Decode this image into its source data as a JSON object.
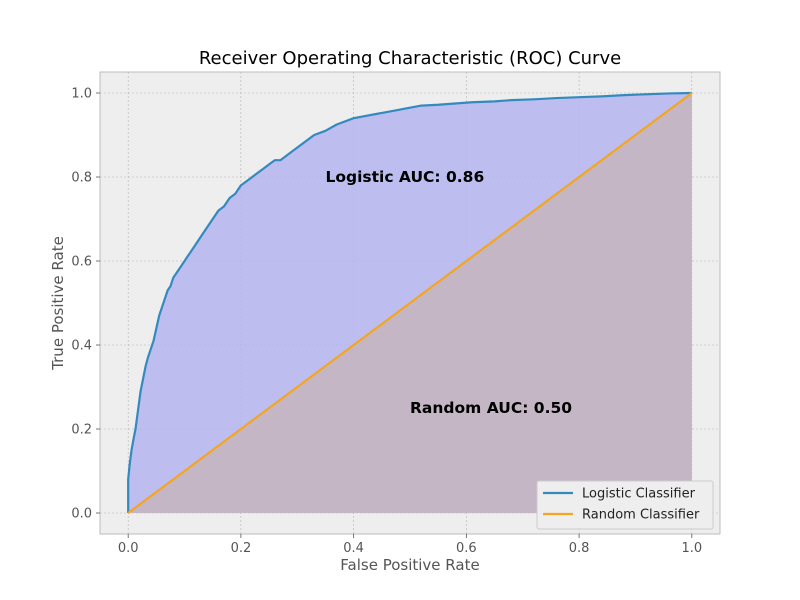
{
  "chart_data": {
    "type": "line",
    "title": "Receiver Operating Characteristic (ROC) Curve",
    "xlabel": "False Positive Rate",
    "ylabel": "True Positive Rate",
    "xlim": [
      -0.05,
      1.05
    ],
    "ylim": [
      -0.05,
      1.05
    ],
    "xticks": [
      "0.0",
      "0.2",
      "0.4",
      "0.6",
      "0.8",
      "1.0"
    ],
    "yticks": [
      "0.0",
      "0.2",
      "0.4",
      "0.6",
      "0.8",
      "1.0"
    ],
    "grid": true,
    "legend_position": "bottom-right",
    "series": [
      {
        "name": "Logistic Classifier",
        "color": "#348abd",
        "fill_color": "#b4b4f0",
        "x": [
          0.0,
          0.0,
          0.003,
          0.006,
          0.01,
          0.013,
          0.016,
          0.019,
          0.022,
          0.025,
          0.028,
          0.031,
          0.035,
          0.04,
          0.045,
          0.05,
          0.055,
          0.06,
          0.065,
          0.07,
          0.075,
          0.08,
          0.085,
          0.09,
          0.095,
          0.1,
          0.105,
          0.11,
          0.12,
          0.13,
          0.14,
          0.15,
          0.16,
          0.17,
          0.18,
          0.19,
          0.2,
          0.21,
          0.22,
          0.23,
          0.24,
          0.25,
          0.26,
          0.27,
          0.28,
          0.29,
          0.31,
          0.33,
          0.35,
          0.37,
          0.38,
          0.4,
          0.42,
          0.44,
          0.46,
          0.48,
          0.5,
          0.52,
          0.55,
          0.58,
          0.61,
          0.65,
          0.68,
          0.72,
          0.76,
          0.8,
          0.84,
          0.88,
          0.92,
          0.96,
          1.0
        ],
        "y": [
          0.0,
          0.08,
          0.12,
          0.15,
          0.18,
          0.2,
          0.23,
          0.26,
          0.29,
          0.31,
          0.33,
          0.35,
          0.37,
          0.39,
          0.41,
          0.44,
          0.47,
          0.49,
          0.51,
          0.53,
          0.54,
          0.56,
          0.57,
          0.58,
          0.59,
          0.6,
          0.61,
          0.62,
          0.64,
          0.66,
          0.68,
          0.7,
          0.72,
          0.73,
          0.75,
          0.76,
          0.78,
          0.79,
          0.8,
          0.81,
          0.82,
          0.83,
          0.84,
          0.84,
          0.85,
          0.86,
          0.88,
          0.9,
          0.91,
          0.925,
          0.93,
          0.94,
          0.945,
          0.95,
          0.955,
          0.96,
          0.965,
          0.97,
          0.972,
          0.975,
          0.978,
          0.98,
          0.983,
          0.985,
          0.988,
          0.99,
          0.992,
          0.995,
          0.997,
          0.999,
          1.0
        ]
      },
      {
        "name": "Random Classifier",
        "color": "#f5a51e",
        "fill_color": "#c8b4b8",
        "x": [
          0.0,
          1.0
        ],
        "y": [
          0.0,
          1.0
        ]
      }
    ],
    "annotations": [
      {
        "text": "Logistic AUC: 0.86",
        "x": 0.35,
        "y": 0.8
      },
      {
        "text": "Random AUC: 0.50",
        "x": 0.5,
        "y": 0.25
      }
    ]
  }
}
